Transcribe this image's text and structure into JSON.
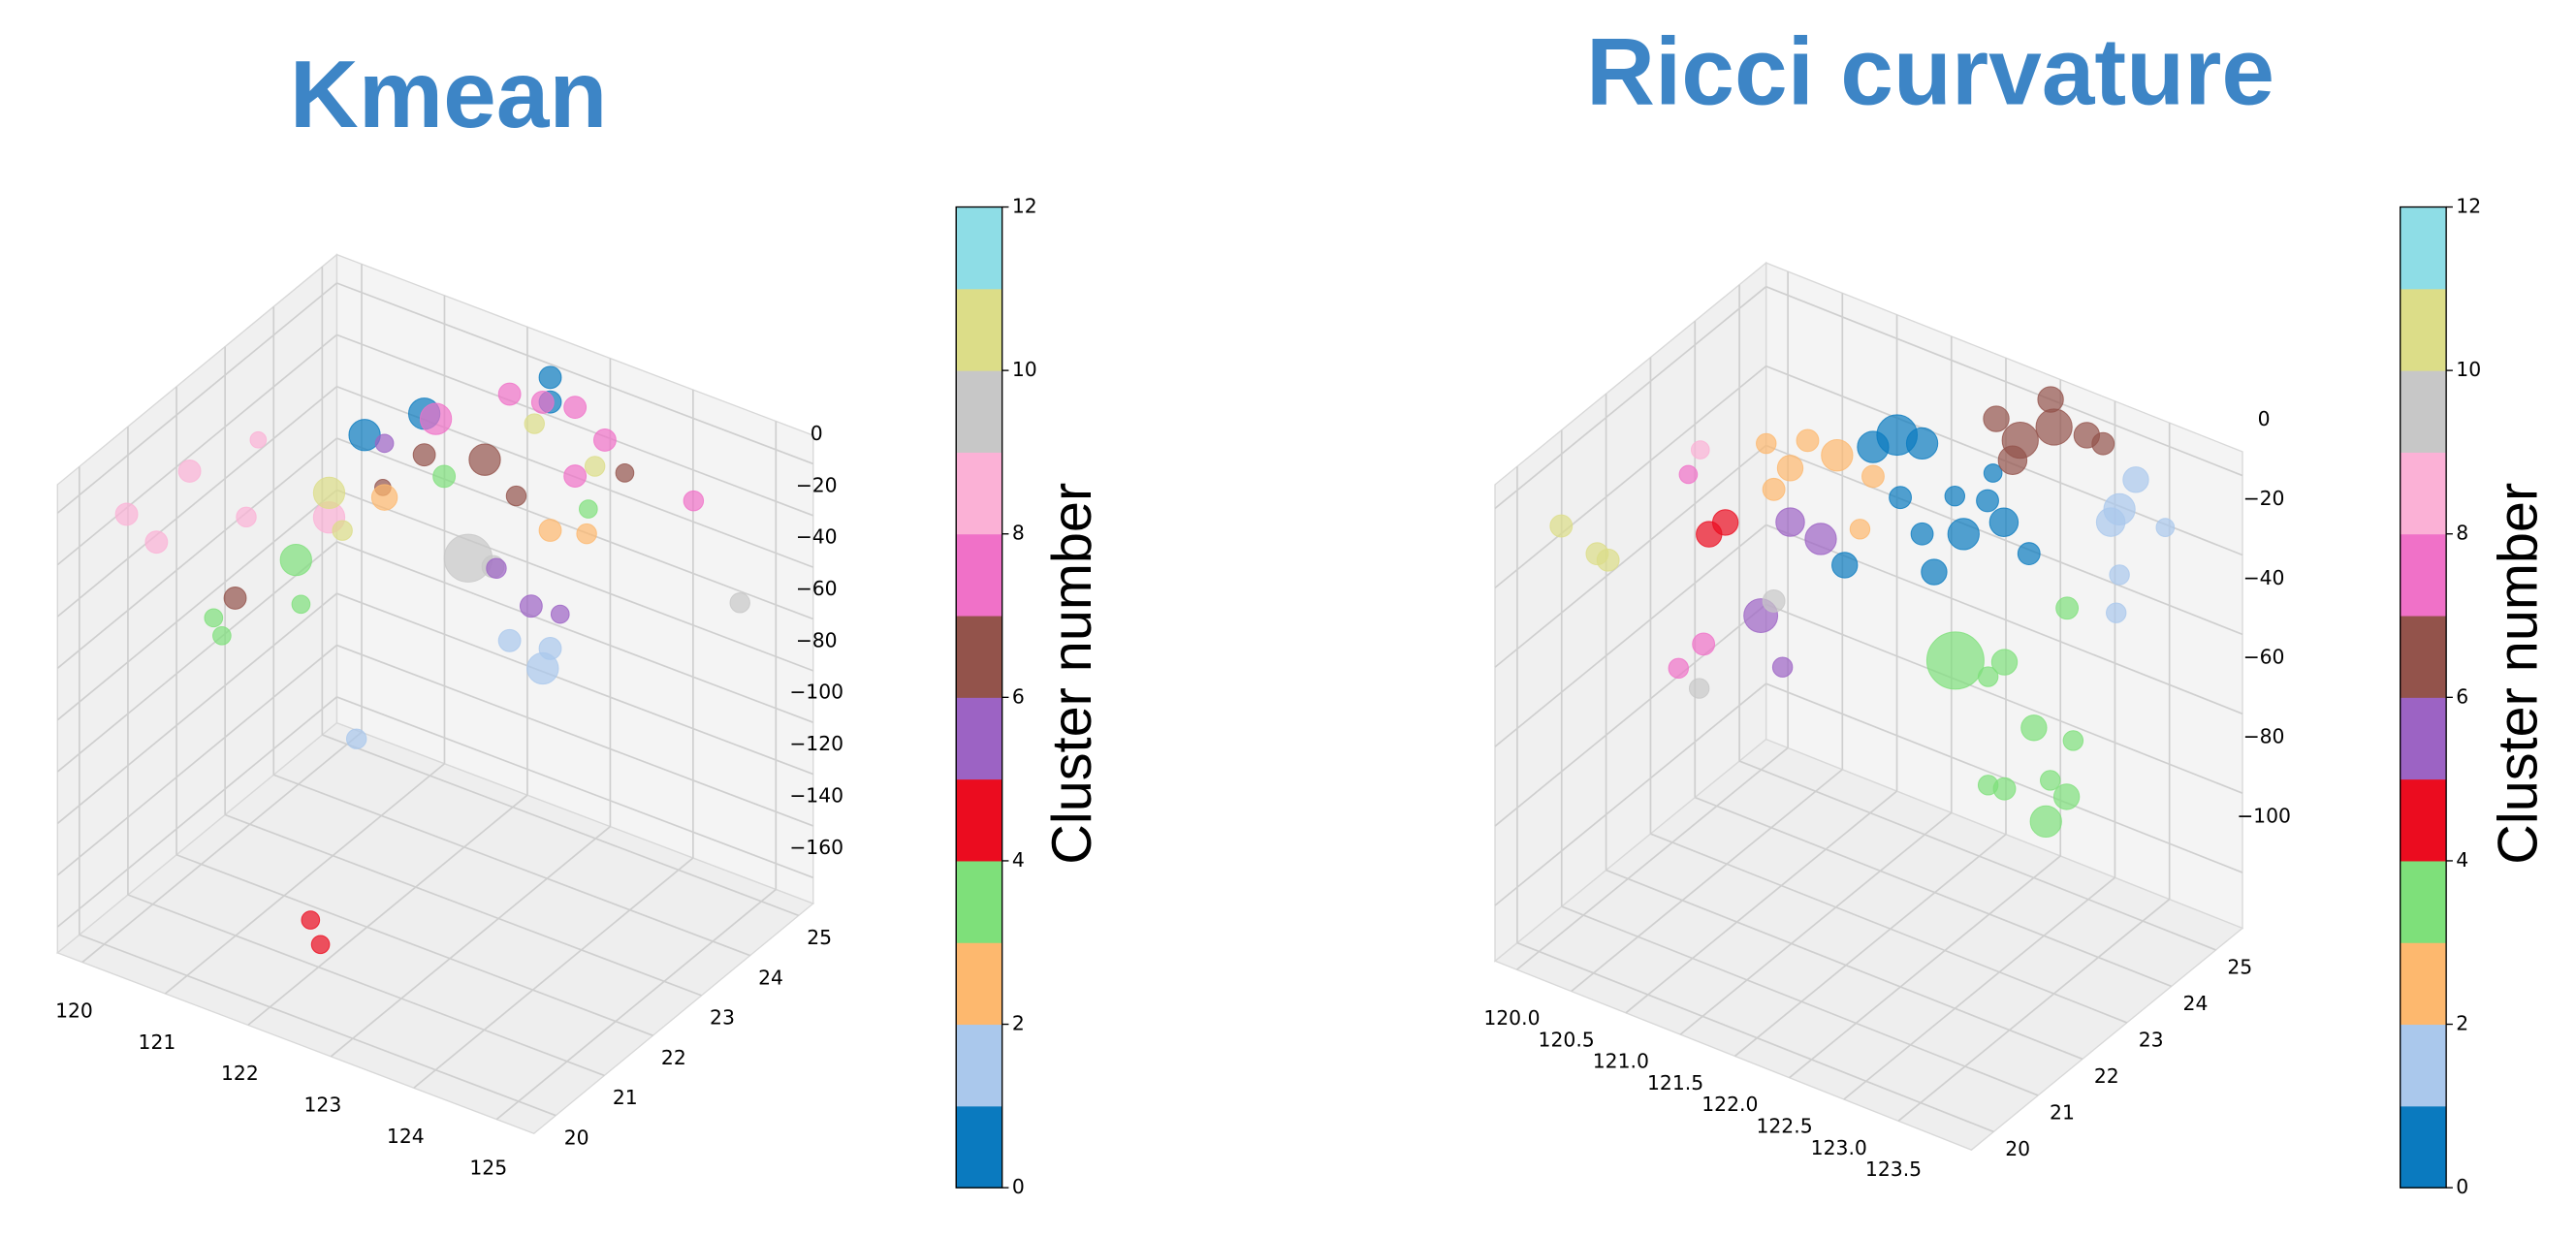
{
  "chart_data": [
    {
      "type": "scatter3d",
      "title": "Kmean",
      "colorbar_label": "Cluster number",
      "xlim": [
        119.7,
        125.45
      ],
      "ylim": [
        19.55,
        25.3
      ],
      "zlim": [
        -170,
        11
      ],
      "xticks": [
        120,
        121,
        122,
        123,
        124,
        125
      ],
      "yticks": [
        20,
        21,
        22,
        23,
        24,
        25
      ],
      "zticks": [
        {
          "value": -160,
          "label": "−160"
        },
        {
          "value": -140,
          "label": "−140"
        },
        {
          "value": -120,
          "label": "−120"
        },
        {
          "value": -100,
          "label": "−100"
        },
        {
          "value": -80,
          "label": "−80"
        },
        {
          "value": -60,
          "label": "−60"
        },
        {
          "value": -40,
          "label": "−40"
        },
        {
          "value": -20,
          "label": "−20"
        },
        0
      ],
      "clim": [
        0,
        12
      ],
      "cticks": [
        0,
        2,
        4,
        6,
        8,
        10,
        12
      ],
      "colors": [
        "#0a7abf",
        "#aac8ec",
        "#fdb86e",
        "#7ee07a",
        "#eb0c1f",
        "#9c63c4",
        "#93534b",
        "#f071c8",
        "#fbb1d6",
        "#c7c7c7",
        "#dcdd88",
        "#8edde6"
      ],
      "x": [
        120.37,
        121.09,
        122.61,
        122.61,
        122.12,
        122.52,
        122.91,
        121.23,
        122.91,
        123.27,
        124.34,
        119.8,
        119.86,
        120.22,
        120.29,
        121.29,
        119.76,
        121.82,
        121.09,
        120.59,
        121.17,
        123.51,
        122.2,
        120.89,
        120.91,
        121.01,
        120.95,
        123.07,
        121.33,
        121.62,
        121.92,
        124.9,
        121.62,
        122.52,
        122.12,
        122.61,
        122.38,
        121.96,
        122.73,
        120.61,
        122.08,
        122.2,
        122.61,
        123.05,
        120.61,
        121.29,
        121.45,
        122.42,
        123.15
      ],
      "y": [
        24.73,
        24.73,
        24.73,
        24.73,
        24.73,
        24.73,
        24.73,
        24.73,
        24.73,
        24.73,
        24.73,
        22.1,
        20.7,
        20.7,
        22.43,
        22.43,
        23.58,
        24.73,
        24.73,
        24.73,
        20.7,
        24.73,
        24.73,
        22.43,
        20.7,
        20.7,
        22.43,
        24.73,
        24.73,
        24.73,
        24.73,
        24.73,
        22.43,
        24.73,
        24.73,
        24.73,
        24.73,
        24.73,
        24.73,
        24.73,
        20.7,
        20.7,
        24.73,
        24.73,
        24.73,
        22.43,
        22.43,
        24.73,
        24.73
      ],
      "z": [
        -41.8,
        -24.8,
        7.7,
        -1.8,
        -4.7,
        -3.0,
        -0.2,
        -25.1,
        -26.8,
        -8.5,
        -19.0,
        -22.0,
        -16.3,
        -22.7,
        -38.9,
        -26.9,
        -33.3,
        -33.7,
        -40.7,
        -59.4,
        -32.8,
        -18.3,
        -43.1,
        -48.2,
        -43.6,
        -49.3,
        -64.6,
        -37.6,
        -46.1,
        -74.2,
        -73.8,
        -51.6,
        -108.5,
        -105.9,
        -100,
        -97.1,
        -83.5,
        -74,
        -82.4,
        -42.1,
        -146.2,
        -154.2,
        -51.4,
        -47.4,
        -63,
        -17.4,
        -30,
        -12.5,
        -20.1
      ],
      "c": [
        0,
        0,
        0,
        0,
        7,
        7,
        7,
        7,
        7,
        7,
        7,
        8,
        8,
        8,
        8,
        8,
        8,
        6,
        6,
        6,
        6,
        6,
        6,
        3,
        3,
        3,
        3,
        3,
        3,
        9,
        9,
        9,
        1,
        1,
        1,
        1,
        5,
        5,
        5,
        5,
        4,
        4,
        2,
        2,
        2,
        10,
        10,
        10,
        10
      ],
      "sizes": [
        300,
        300,
        150,
        150,
        150,
        150,
        150,
        300,
        150,
        150,
        120,
        150,
        150,
        150,
        120,
        300,
        80,
        300,
        150,
        80,
        150,
        100,
        120,
        300,
        100,
        100,
        100,
        100,
        150,
        700,
        150,
        120,
        120,
        300,
        150,
        150,
        150,
        120,
        100,
        100,
        100,
        100,
        150,
        120,
        200,
        300,
        120,
        120,
        120
      ]
    },
    {
      "type": "scatter3d",
      "title": "Ricci curvature",
      "colorbar_label": "Cluster number",
      "xlim": [
        119.8,
        124.17
      ],
      "ylim": [
        19.5,
        25.6
      ],
      "zlim": [
        -114,
        6
      ],
      "xticks": [
        {
          "value": 120,
          "label": "120.0"
        },
        120.5,
        {
          "value": 121,
          "label": "121.0"
        },
        121.5,
        {
          "value": 122,
          "label": "122.0"
        },
        122.5,
        {
          "value": 123,
          "label": "123.0"
        },
        123.5
      ],
      "yticks": [
        20,
        21,
        22,
        23,
        24,
        25
      ],
      "zticks": [
        {
          "value": -100,
          "label": "−100"
        },
        {
          "value": -80,
          "label": "−80"
        },
        {
          "value": -60,
          "label": "−60"
        },
        {
          "value": -40,
          "label": "−40"
        },
        {
          "value": -20,
          "label": "−20"
        },
        0
      ],
      "clim": [
        0,
        12
      ],
      "cticks": [
        0,
        2,
        4,
        6,
        8,
        10,
        12
      ],
      "colors": [
        "#0a7abf",
        "#aac8ec",
        "#fdb86e",
        "#7ee07a",
        "#eb0c1f",
        "#9c63c4",
        "#93534b",
        "#f071c8",
        "#fbb1d6",
        "#c7c7c7",
        "#dcdd88",
        "#8edde6"
      ],
      "x": [
        121.25,
        121.48,
        121.03,
        121.28,
        121.78,
        122.08,
        122.23,
        121.86,
        121.48,
        121.59,
        120.77,
        122.46,
        122.13,
        122.38,
        122.69,
        122.16,
        122.99,
        122.41,
        122.31,
        123.14,
        120.7,
        120.27,
        120.05,
        120.43,
        121.03,
        120.91,
        120.12,
        120.27,
        120.55,
        120,
        120.2,
        120.52,
        120.67,
        120.47,
        120.24,
        120.33,
        120.44,
        120.12,
        120.43,
        119.91,
        120.24,
        120.34,
        122.78,
        123.23,
        123.08,
        123.5,
        123.86,
        122.81,
        123.08,
        123.23,
        123.65,
        123.8,
        123.61,
        123.29,
        123.44,
        123.71,
        123.29,
        123.26,
        123.21
      ],
      "y": [
        24.99,
        24.99,
        24.99,
        24.99,
        24.99,
        24.99,
        24.99,
        24.99,
        24.99,
        24.99,
        24.99,
        24.99,
        24.99,
        24.99,
        24.99,
        24.99,
        24.99,
        25.6,
        24.99,
        24.99,
        24.99,
        24.99,
        24.99,
        24.99,
        24.99,
        24.99,
        24.99,
        24.99,
        24.99,
        24.99,
        24.99,
        22.55,
        22.55,
        22.55,
        22.55,
        22.55,
        22.55,
        24.99,
        22.55,
        20.72,
        20.72,
        20.72,
        22.55,
        22.55,
        22.55,
        22.55,
        22.55,
        24.99,
        22.55,
        22.55,
        22.55,
        22.55,
        22.55,
        24.99,
        24.99,
        24.99,
        24.99,
        24.99,
        24.99
      ],
      "z": [
        -16,
        -15.6,
        -21.4,
        -31.4,
        -25.6,
        -23.5,
        -27.3,
        -34.3,
        -38.4,
        -46.8,
        -54,
        -32.7,
        -16,
        -5,
        1.7,
        -2,
        2.9,
        0,
        -10.8,
        2.4,
        -27.1,
        -35,
        -31.2,
        -26.3,
        -28.8,
        -43.4,
        -42,
        -48.6,
        -49.8,
        -75.1,
        -85.9,
        -26.6,
        -22,
        -54.8,
        -63.4,
        -13.6,
        -6.2,
        -70.1,
        -66.4,
        -14.4,
        -17.8,
        -18.3,
        -33.8,
        -29.3,
        -34.6,
        -42.9,
        -42.2,
        -42.6,
        -61.9,
        -61.2,
        -54.5,
        -57,
        -65.3,
        -12.5,
        -3.4,
        -12.5,
        -29,
        -38.9,
        -16.6
      ],
      "c": [
        0,
        0,
        0,
        0,
        0,
        0,
        0,
        0,
        0,
        0,
        0,
        0,
        0,
        6,
        6,
        6,
        6,
        6,
        6,
        6,
        2,
        2,
        2,
        2,
        2,
        2,
        2,
        5,
        5,
        5,
        5,
        4,
        4,
        7,
        7,
        7,
        8,
        9,
        9,
        10,
        10,
        10,
        3,
        3,
        3,
        3,
        3,
        3,
        3,
        3,
        3,
        3,
        3,
        1,
        1,
        1,
        1,
        1,
        1
      ],
      "sizes": [
        500,
        300,
        300,
        150,
        120,
        150,
        250,
        300,
        150,
        200,
        200,
        150,
        100,
        400,
        400,
        200,
        200,
        200,
        250,
        150,
        300,
        200,
        120,
        150,
        150,
        120,
        150,
        250,
        300,
        350,
        120,
        200,
        200,
        150,
        120,
        100,
        100,
        150,
        120,
        150,
        150,
        150,
        1000,
        200,
        120,
        200,
        120,
        150,
        120,
        150,
        120,
        200,
        300,
        300,
        200,
        100,
        120,
        120,
        250
      ]
    }
  ]
}
